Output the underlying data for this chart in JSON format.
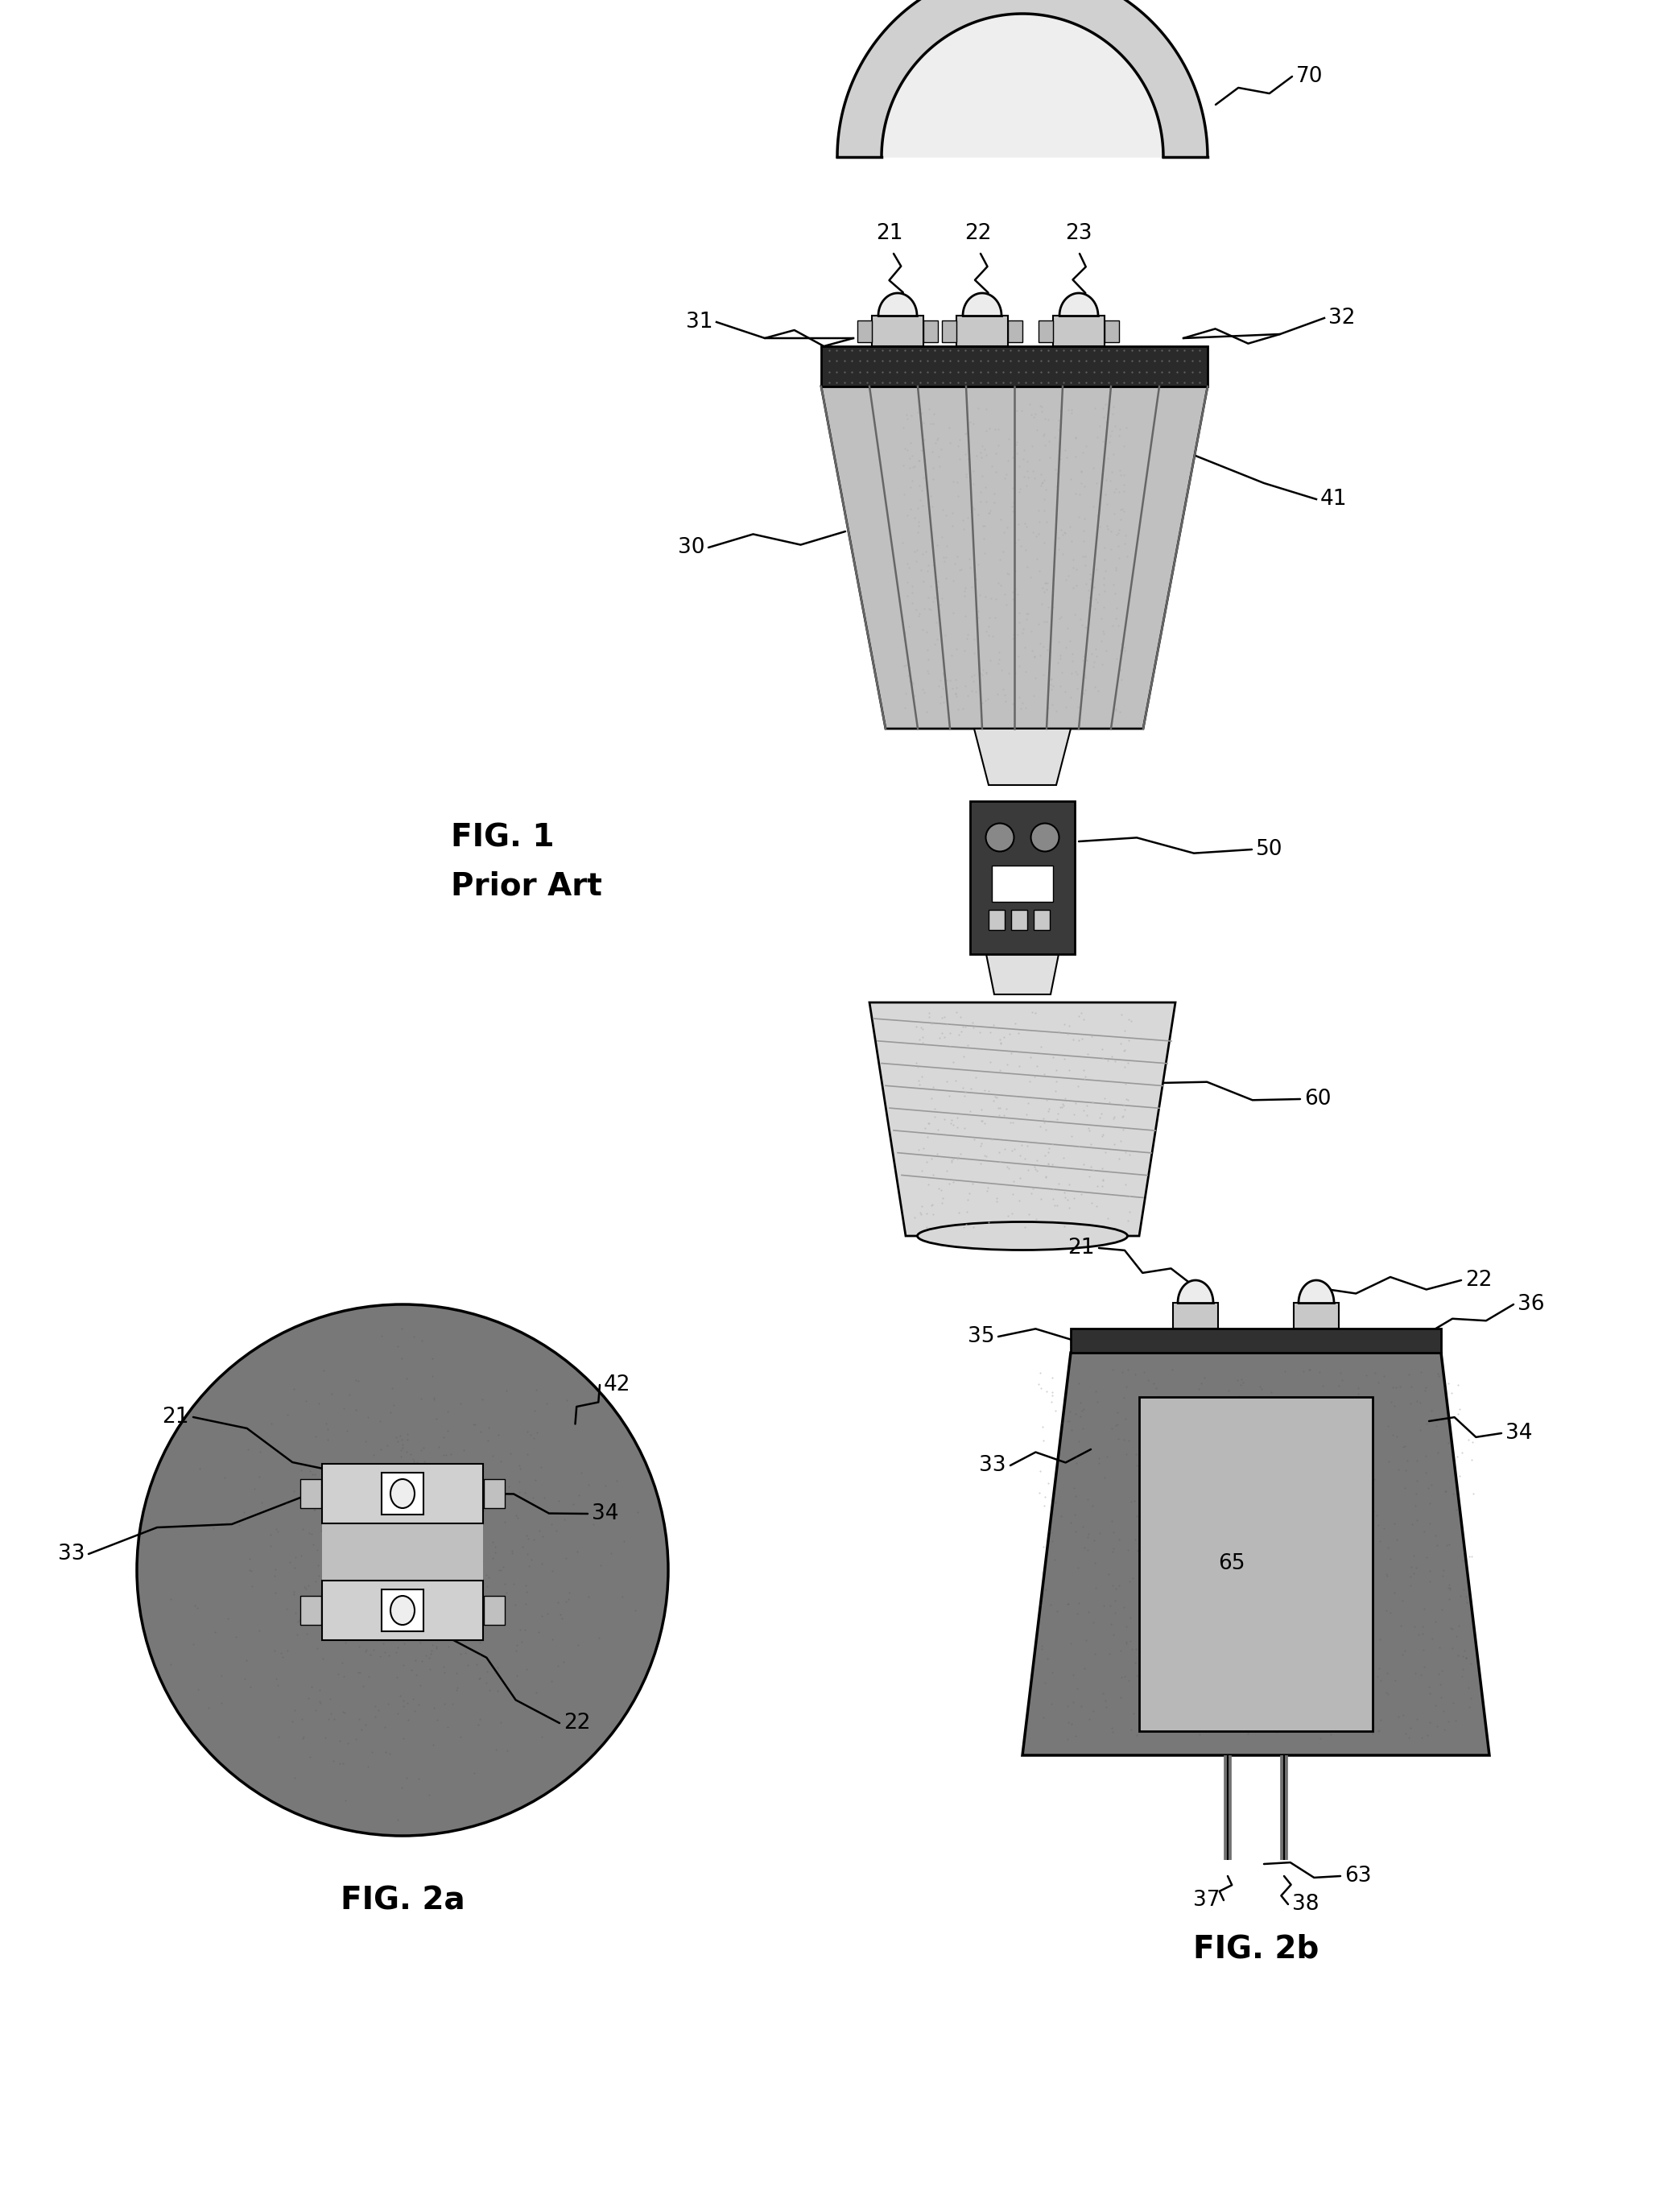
{
  "background_color": "#ffffff",
  "fig_width": 20.57,
  "fig_height": 27.41,
  "fig1_label": "FIG. 1",
  "fig1_sublabel": "Prior Art",
  "fig2a_label": "FIG. 2a",
  "fig2b_label": "FIG. 2b",
  "label_fontsize": 24,
  "ref_fontsize": 19,
  "colors": {
    "light_gray": "#d0d0d0",
    "mid_gray": "#a0a0a0",
    "dark_gray": "#808080",
    "very_dark": "#2a2a2a",
    "white": "#ffffff",
    "heatsink_light": "#c0c0c0",
    "heatsink_dark": "#909090",
    "pcb_dark": "#3a3a3a",
    "globe_fill": "#e8e8e8",
    "base_fill": "#d8d8d8",
    "outline": "#000000",
    "fig2_dark": "#787878"
  }
}
